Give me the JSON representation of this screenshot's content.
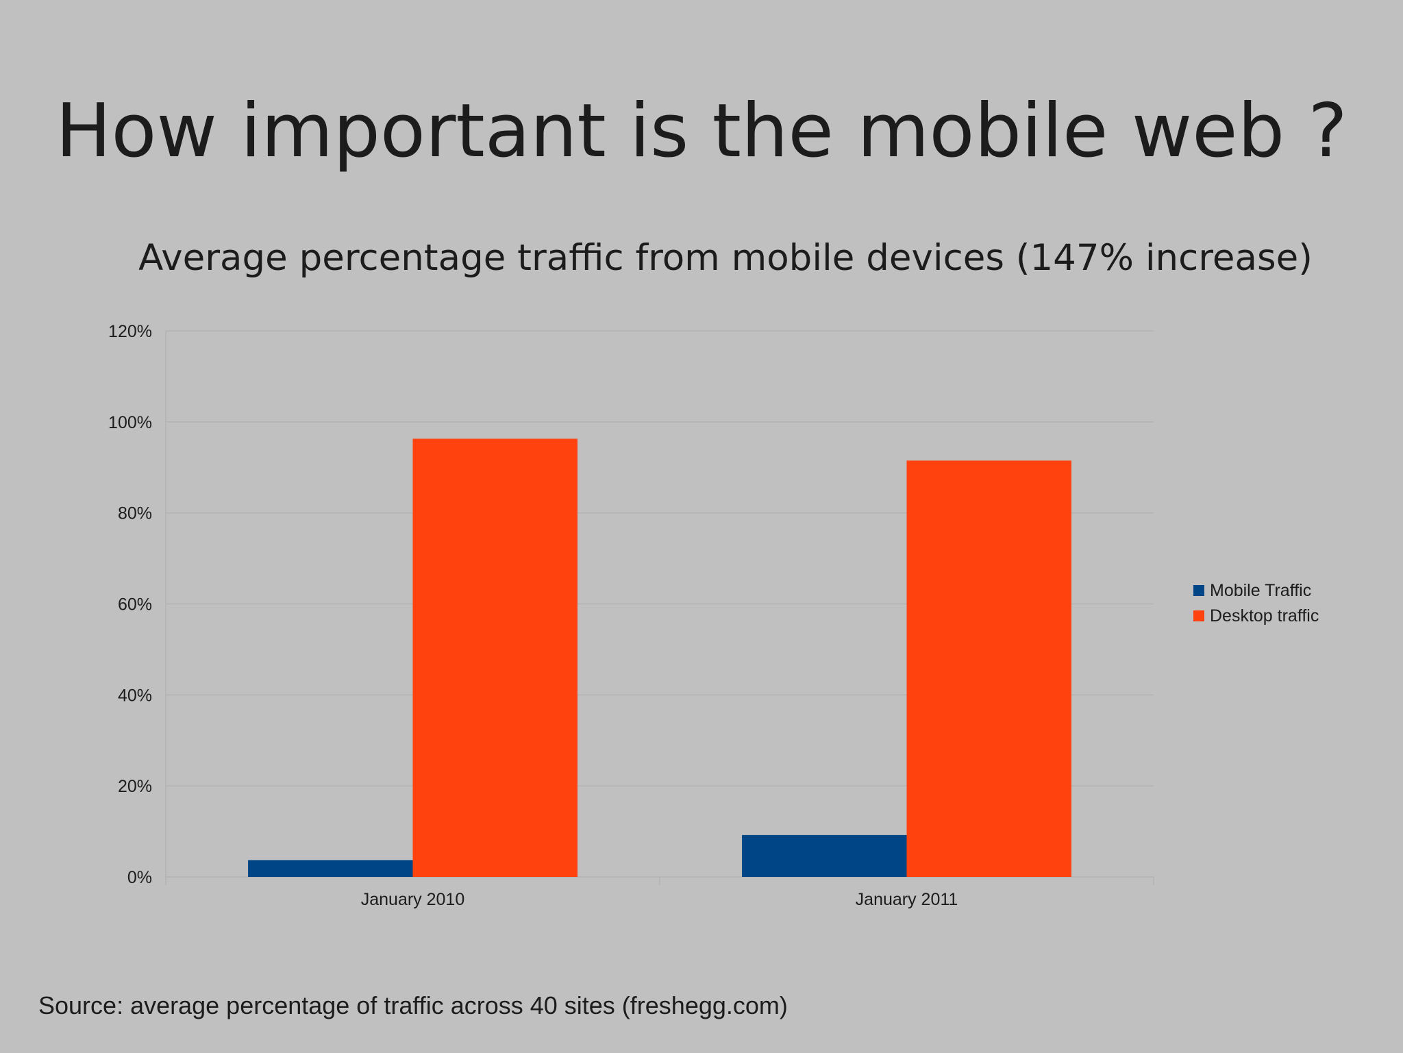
{
  "slide": {
    "title": "How important is the mobile web ?",
    "source": "Source: average percentage of traffic across 40 sites (freshegg.com)"
  },
  "chart_data": {
    "type": "bar",
    "title": "Average percentage traffic from mobile devices (147% increase)",
    "xlabel": "",
    "ylabel": "",
    "categories": [
      "January 2010",
      "January 2011"
    ],
    "series": [
      {
        "name": "Mobile Traffic",
        "values": [
          3.7,
          9.2
        ],
        "color": "#004586"
      },
      {
        "name": "Desktop traffic",
        "values": [
          96.3,
          91.5
        ],
        "color": "#ff420e"
      }
    ],
    "ylim": [
      0,
      120
    ],
    "yticks": [
      0,
      20,
      40,
      60,
      80,
      100,
      120
    ],
    "ytick_labels": [
      "0%",
      "20%",
      "40%",
      "60%",
      "80%",
      "100%",
      "120%"
    ],
    "grid": true,
    "legend_position": "right"
  }
}
